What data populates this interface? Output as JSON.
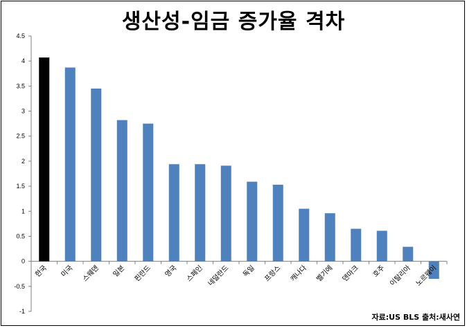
{
  "chart_data": {
    "type": "bar",
    "title": "생산성-임금 증가율 격차",
    "source": "자료:US BLS 출처:새사연",
    "categories": [
      "한국",
      "미국",
      "스웨덴",
      "일본",
      "핀란드",
      "영국",
      "스페인",
      "네덜란드",
      "독일",
      "프랑스",
      "캐나다",
      "벨기에",
      "덴마크",
      "호주",
      "이탈리아",
      "노르웨이"
    ],
    "values": [
      4.07,
      3.87,
      3.45,
      2.82,
      2.75,
      1.94,
      1.94,
      1.91,
      1.59,
      1.53,
      1.05,
      0.96,
      0.65,
      0.61,
      0.29,
      -0.35
    ],
    "highlight_index": 0,
    "colors": {
      "highlight": "#000000",
      "bar": "#4f81bd",
      "grid": "#7f7f7f",
      "axis": "#7f7f7f"
    },
    "ylim": [
      -1,
      4.5
    ],
    "yticks": [
      "4.5",
      "4",
      "3.5",
      "3",
      "2.5",
      "2",
      "1.5",
      "1",
      "0.5",
      "0",
      "-0.5",
      "-1"
    ],
    "grid": false,
    "legend": "none"
  }
}
